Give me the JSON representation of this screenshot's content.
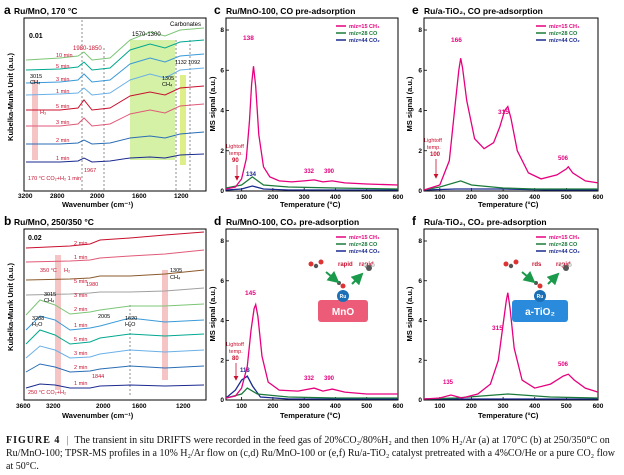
{
  "panels": {
    "a": {
      "letter": "a",
      "title": "Ru/MnO, 170 °C",
      "scale": "0.01",
      "ylabel": "Kubelka-Munk Unit (a.u.)",
      "xlabel": "Wavenumber (cm⁻¹)",
      "xticks": [
        "3200",
        "2800",
        "2000",
        "1600",
        "1200"
      ],
      "annotations": [
        "1980-1850",
        "1570-1300",
        "Carbonates",
        "3015",
        "CH₄",
        "H₃",
        "1305",
        "CH₄",
        "1132",
        "1092",
        "1967",
        "170 °C CO₂+H₂ 1 min"
      ],
      "traces": [
        "10 min",
        "5 min",
        "3 min",
        "1 min",
        "5 min",
        "3 min",
        "2 min",
        "1 min"
      ]
    },
    "b": {
      "letter": "b",
      "title": "Ru/MnO, 250/350 °C",
      "scale": "0.02",
      "ylabel": "Kubelka-Munk Unit (a.u.)",
      "xlabel": "Wavenumber (cm⁻¹)",
      "xticks": [
        "3600",
        "3200",
        "2000",
        "1600",
        "1200"
      ],
      "annotations": [
        "350 °C",
        "H₂",
        "1305",
        "CH₄",
        "1980",
        "3015",
        "CH₄",
        "3288",
        "H₂O",
        "2005",
        "1620",
        "H₂O",
        "1844",
        "250 °C CO₂+H₂"
      ],
      "traces": [
        "2 min",
        "1 min",
        "5 min",
        "3 min",
        "2 min",
        "1 min",
        "5 min",
        "3 min",
        "2 min",
        "1 min"
      ]
    },
    "c": {
      "letter": "c",
      "title": "Ru/MnO-100, CO pre-adsorption",
      "ylabel": "MS signal (a.u.)",
      "xlabel": "Temperature (°C)",
      "peaks": [
        "138",
        "134",
        "332",
        "390"
      ],
      "lightoff": [
        "Lightoff",
        "temp.",
        "90"
      ]
    },
    "d": {
      "letter": "d",
      "title": "Ru/MnO-100, CO₂ pre-adsorption",
      "ylabel": "MS signal (a.u.)",
      "xlabel": "Temperature (°C)",
      "peaks": [
        "145",
        "118",
        "332",
        "390"
      ],
      "lightoff": [
        "Lightoff",
        "temp.",
        "80"
      ],
      "scheme": {
        "step1": "rapid",
        "step2": "rapid",
        "metal": "Ru",
        "support": "MnO"
      }
    },
    "e": {
      "letter": "e",
      "title": "Ru/a-TiO₂, CO pre-adsorption",
      "ylabel": "MS signal (a.u.)",
      "xlabel": "Temperature (°C)",
      "peaks": [
        "166",
        "315",
        "506"
      ],
      "lightoff": [
        "Lightoff",
        "temp.",
        "100"
      ]
    },
    "f": {
      "letter": "f",
      "title": "Ru/a-TiO₂, CO₂ pre-adsorption",
      "ylabel": "MS signal (a.u.)",
      "xlabel": "Temperature (°C)",
      "peaks": [
        "135",
        "315",
        "506"
      ],
      "scheme": {
        "step1": "rds",
        "step2": "rapid",
        "metal": "Ru",
        "support": "a-TiO₂"
      }
    }
  },
  "ms_legend": [
    "m/z=15  CH₄",
    "m/z=28  CO",
    "m/z=44  CO₂"
  ],
  "colors": {
    "ch4": "#e6007e",
    "co": "#1a7a3a",
    "co2": "#1a2a8f",
    "green_band": "#b7e86a",
    "pink_band": "#f3b7b7"
  },
  "caption": {
    "label": "FIGURE 4",
    "separator": "|",
    "text": "The transient in situ DRIFTS were recorded in the feed gas of 20%CO₂/80%H₂ and then 10% H₂/Ar (a) at 170°C (b) at 250/350°C on Ru/MnO-100; TPSR-MS profiles in a 10% H₂/Ar flow on (c,d) Ru/MnO-100 or (e,f) Ru/a-TiO₂ catalyst pretreated with a 4%CO/He or a pure CO₂ flow at 50°C."
  },
  "chart_data": [
    {
      "type": "line",
      "title": "Ru/MnO-100, CO pre-adsorption",
      "xlabel": "Temperature (°C)",
      "ylabel": "MS signal (a.u.)",
      "xlim": [
        50,
        600
      ],
      "ylim": [
        0,
        8
      ],
      "xticks": [
        100,
        200,
        300,
        400,
        500,
        600
      ],
      "yticks": [
        0,
        2,
        4,
        6,
        8
      ],
      "series": [
        {
          "name": "m/z=15 CH₄",
          "x": [
            50,
            80,
            100,
            115,
            125,
            132,
            138,
            145,
            155,
            170,
            190,
            220,
            260,
            300,
            332,
            360,
            390,
            430,
            500,
            600
          ],
          "y": [
            0.1,
            0.2,
            0.6,
            1.6,
            3.5,
            5.3,
            6.2,
            5.2,
            2.8,
            1.2,
            0.7,
            0.5,
            0.45,
            0.5,
            0.55,
            0.45,
            0.5,
            0.4,
            0.35,
            0.3
          ]
        },
        {
          "name": "m/z=28 CO",
          "x": [
            50,
            100,
            134,
            170,
            250,
            400,
            600
          ],
          "y": [
            0.15,
            0.3,
            0.7,
            0.3,
            0.2,
            0.15,
            0.1
          ]
        },
        {
          "name": "m/z=44 CO₂",
          "x": [
            50,
            100,
            134,
            170,
            250,
            400,
            600
          ],
          "y": [
            0.05,
            0.1,
            0.25,
            0.1,
            0.05,
            0.05,
            0.05
          ]
        }
      ]
    },
    {
      "type": "line",
      "title": "Ru/MnO-100, CO₂ pre-adsorption",
      "xlabel": "Temperature (°C)",
      "ylabel": "MS signal (a.u.)",
      "xlim": [
        50,
        600
      ],
      "ylim": [
        0,
        8
      ],
      "xticks": [
        100,
        200,
        300,
        400,
        500,
        600
      ],
      "yticks": [
        0,
        2,
        4,
        6,
        8
      ],
      "series": [
        {
          "name": "m/z=15 CH₄",
          "x": [
            50,
            80,
            100,
            118,
            130,
            140,
            145,
            152,
            165,
            185,
            220,
            280,
            332,
            360,
            390,
            430,
            500,
            600
          ],
          "y": [
            0.1,
            0.2,
            0.6,
            1.7,
            3.5,
            4.6,
            4.8,
            4.2,
            2.2,
            0.9,
            0.5,
            0.45,
            0.6,
            0.45,
            0.55,
            0.4,
            0.3,
            0.3
          ]
        },
        {
          "name": "m/z=28 CO",
          "x": [
            50,
            100,
            118,
            150,
            250,
            400,
            600
          ],
          "y": [
            0.1,
            0.3,
            0.6,
            0.3,
            0.15,
            0.1,
            0.1
          ]
        },
        {
          "name": "m/z=44 CO₂",
          "x": [
            50,
            80,
            100,
            118,
            135,
            160,
            250,
            400,
            600
          ],
          "y": [
            0.1,
            0.5,
            1.0,
            1.2,
            0.7,
            0.15,
            0.05,
            0.05,
            0.05
          ]
        }
      ]
    },
    {
      "type": "line",
      "title": "Ru/a-TiO₂, CO pre-adsorption",
      "xlabel": "Temperature (°C)",
      "ylabel": "MS signal (a.u.)",
      "xlim": [
        50,
        600
      ],
      "ylim": [
        0,
        8
      ],
      "xticks": [
        100,
        200,
        300,
        400,
        500,
        600
      ],
      "yticks": [
        0,
        2,
        4,
        6,
        8
      ],
      "series": [
        {
          "name": "m/z=15 CH₄",
          "x": [
            50,
            100,
            130,
            150,
            160,
            166,
            172,
            185,
            210,
            240,
            270,
            290,
            305,
            315,
            325,
            345,
            380,
            420,
            470,
            500,
            506,
            520,
            560,
            600
          ],
          "y": [
            0.05,
            0.3,
            1.5,
            4.5,
            6.0,
            6.6,
            6.1,
            4.5,
            2.6,
            2.1,
            2.4,
            3.2,
            4.0,
            4.2,
            3.6,
            2.0,
            0.9,
            0.6,
            0.8,
            1.1,
            1.2,
            0.9,
            0.5,
            0.4
          ]
        },
        {
          "name": "m/z=28 CO",
          "x": [
            50,
            100,
            166,
            200,
            300,
            400,
            600
          ],
          "y": [
            0.05,
            0.2,
            0.5,
            0.3,
            0.15,
            0.1,
            0.1
          ]
        },
        {
          "name": "m/z=44 CO₂",
          "x": [
            50,
            150,
            300,
            450,
            600
          ],
          "y": [
            0.05,
            0.1,
            0.1,
            0.05,
            0.05
          ]
        }
      ]
    },
    {
      "type": "line",
      "title": "Ru/a-TiO₂, CO₂ pre-adsorption",
      "xlabel": "Temperature (°C)",
      "ylabel": "MS signal (a.u.)",
      "xlim": [
        50,
        600
      ],
      "ylim": [
        0,
        8
      ],
      "xticks": [
        100,
        200,
        300,
        400,
        500,
        600
      ],
      "yticks": [
        0,
        2,
        4,
        6,
        8
      ],
      "series": [
        {
          "name": "m/z=15 CH₄",
          "x": [
            50,
            100,
            135,
            170,
            220,
            260,
            285,
            300,
            310,
            315,
            322,
            335,
            360,
            400,
            450,
            490,
            506,
            525,
            560,
            600
          ],
          "y": [
            0.05,
            0.1,
            0.25,
            0.1,
            0.3,
            0.8,
            2.0,
            3.8,
            5.0,
            5.4,
            4.6,
            2.6,
            1.0,
            0.6,
            0.8,
            1.2,
            1.3,
            1.0,
            0.6,
            0.4
          ]
        },
        {
          "name": "m/z=28 CO",
          "x": [
            50,
            150,
            315,
            450,
            600
          ],
          "y": [
            0.05,
            0.1,
            0.3,
            0.15,
            0.1
          ]
        },
        {
          "name": "m/z=44 CO₂",
          "x": [
            50,
            150,
            300,
            450,
            600
          ],
          "y": [
            0.05,
            0.05,
            0.05,
            0.05,
            0.05
          ]
        }
      ]
    }
  ]
}
